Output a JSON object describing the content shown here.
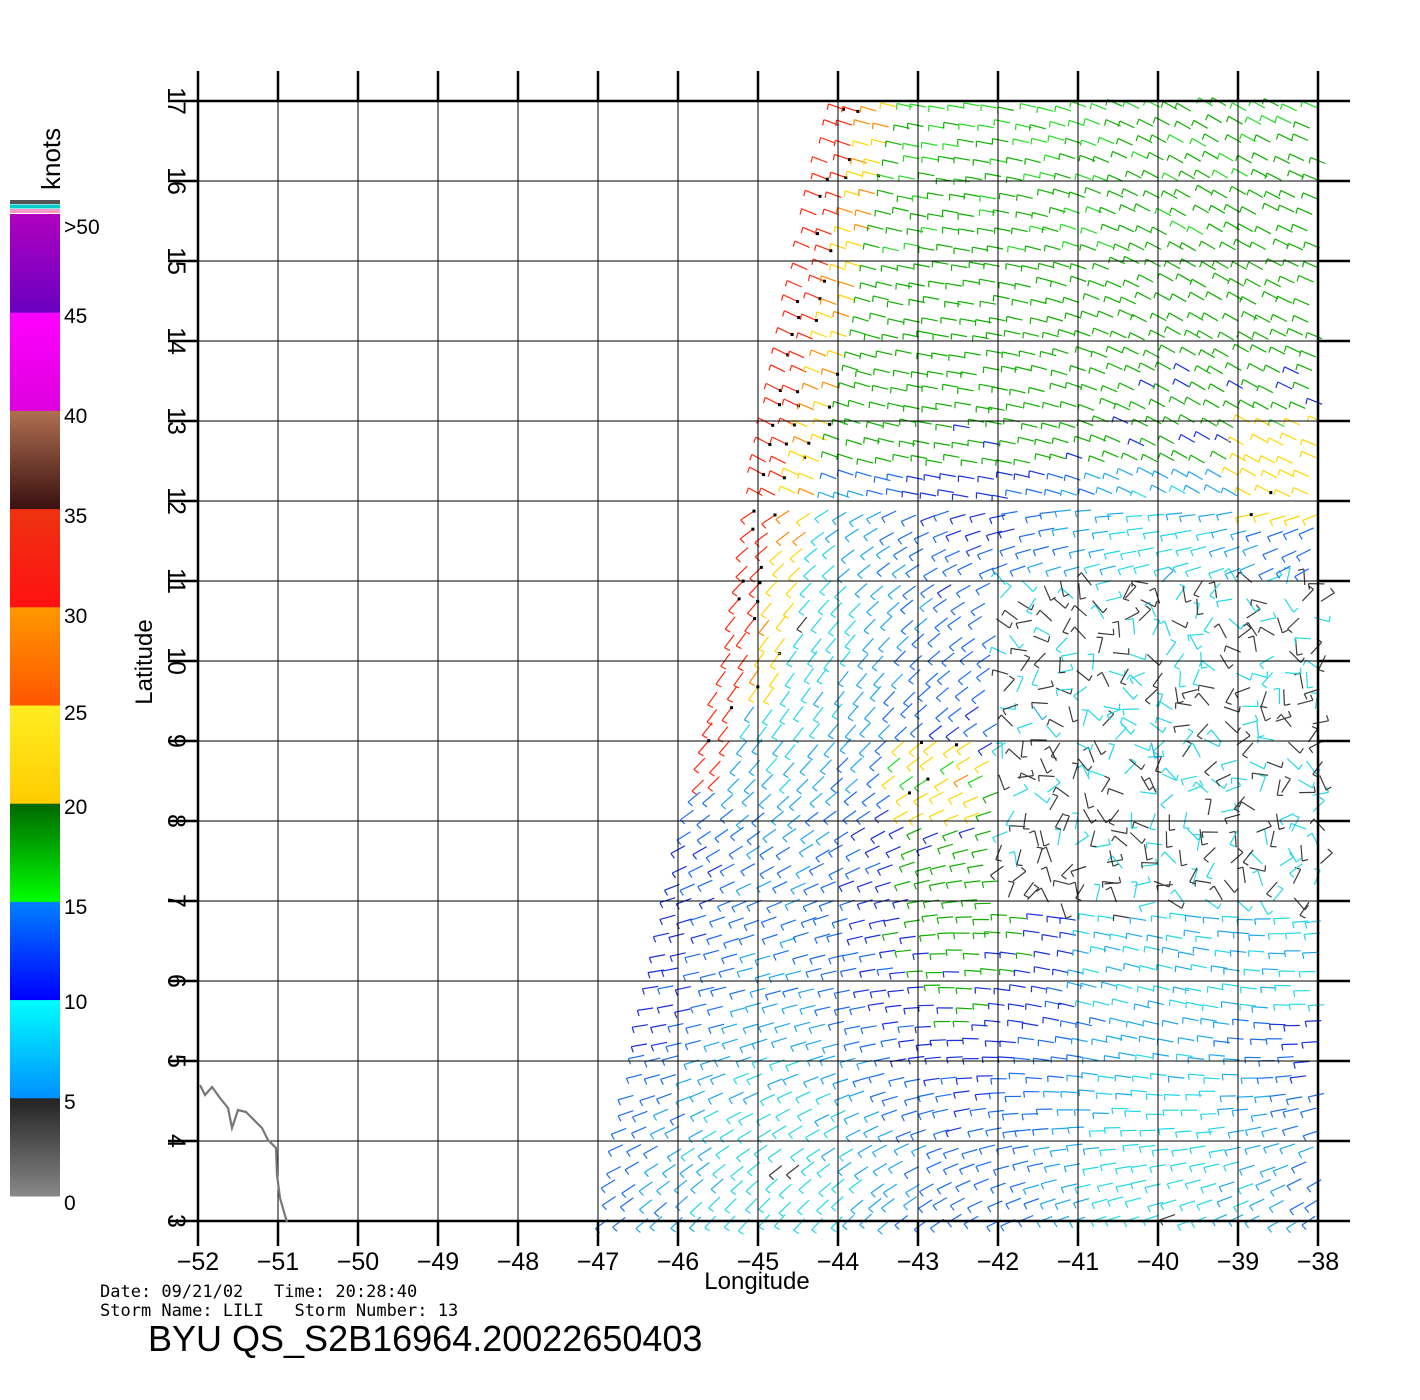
{
  "map": {
    "x_axis_label": "Longitude",
    "y_axis_label": "Latitude",
    "lon_ticks": [
      "-52",
      "-51",
      "-50",
      "-49",
      "-48",
      "-47",
      "-46",
      "-45",
      "-44",
      "-43",
      "-42",
      "-41",
      "-40",
      "-39",
      "-38"
    ],
    "lat_ticks": [
      "3",
      "4",
      "5",
      "6",
      "7",
      "8",
      "9",
      "10",
      "11",
      "12",
      "13",
      "14",
      "15",
      "16",
      "17"
    ],
    "lon_range": [
      -52,
      -38
    ],
    "lat_range": [
      3,
      17
    ],
    "grid": true,
    "swath_edge_lon_at_lat3": -46.9,
    "swath_edge_lon_at_lat17": -44.0,
    "coastline_color": "#777777"
  },
  "legend": {
    "unit": "knots",
    "labels": [
      ">50",
      "45",
      "40",
      "35",
      "30",
      "25",
      "20",
      "15",
      "10",
      "5",
      "0"
    ],
    "stops": [
      {
        "from": 0,
        "to": 5,
        "top_color": "#222222",
        "bottom_color": "#888888"
      },
      {
        "from": 5,
        "to": 10,
        "top_color": "#00ffff",
        "bottom_color": "#0090ff"
      },
      {
        "from": 10,
        "to": 15,
        "top_color": "#0080ff",
        "bottom_color": "#0000ff"
      },
      {
        "from": 15,
        "to": 20,
        "top_color": "#006600",
        "bottom_color": "#00ff00"
      },
      {
        "from": 20,
        "to": 25,
        "top_color": "#ffee22",
        "bottom_color": "#ffcc00"
      },
      {
        "from": 25,
        "to": 30,
        "top_color": "#ff9900",
        "bottom_color": "#ff5500"
      },
      {
        "from": 30,
        "to": 35,
        "top_color": "#ee3311",
        "bottom_color": "#ff1111"
      },
      {
        "from": 35,
        "to": 40,
        "top_color": "#b07050",
        "bottom_color": "#3a1010"
      },
      {
        "from": 40,
        "to": 45,
        "top_color": "#ff00ff",
        "bottom_color": "#dd00dd"
      },
      {
        "from": 45,
        "to": 50,
        "top_color": "#b000c0",
        "bottom_color": "#6a00c0"
      }
    ],
    "top_stripes": [
      "#555555",
      "#00cccc",
      "#ff99cc"
    ]
  },
  "footer": {
    "line1": "Date: 09/21/02   Time: 20:28:40",
    "line2": "Storm Name: LILI   Storm Number: 13",
    "file_id": "BYU QS_S2B16964.20022650403"
  }
}
